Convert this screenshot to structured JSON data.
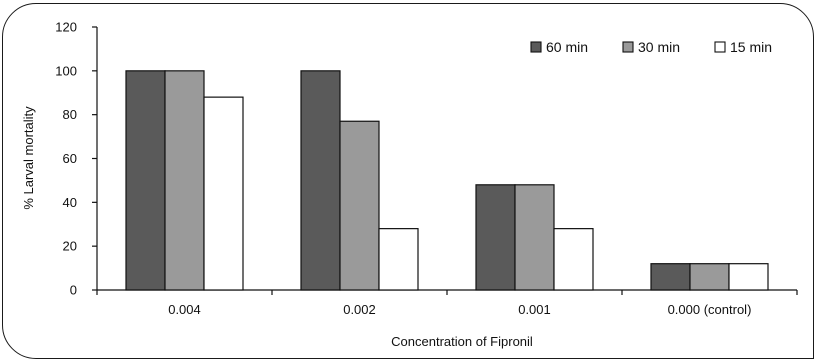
{
  "chart_data": {
    "type": "bar",
    "categories": [
      "0.004",
      "0.002",
      "0.001",
      "0.000 (control)"
    ],
    "series": [
      {
        "name": "60 min",
        "values": [
          100,
          100,
          48,
          12
        ],
        "color": "#5a5a5a"
      },
      {
        "name": "30 min",
        "values": [
          100,
          77,
          48,
          12
        ],
        "color": "#9a9a9a"
      },
      {
        "name": "15 min",
        "values": [
          88,
          28,
          28,
          12
        ],
        "color": "#ffffff"
      }
    ],
    "title": "",
    "xlabel": "Concentration of Fipronil",
    "ylabel": "% Larval mortality",
    "ylim": [
      0,
      120
    ],
    "yticks": [
      0,
      20,
      40,
      60,
      80,
      100,
      120
    ],
    "grid": false,
    "legend_position": "top-right"
  }
}
